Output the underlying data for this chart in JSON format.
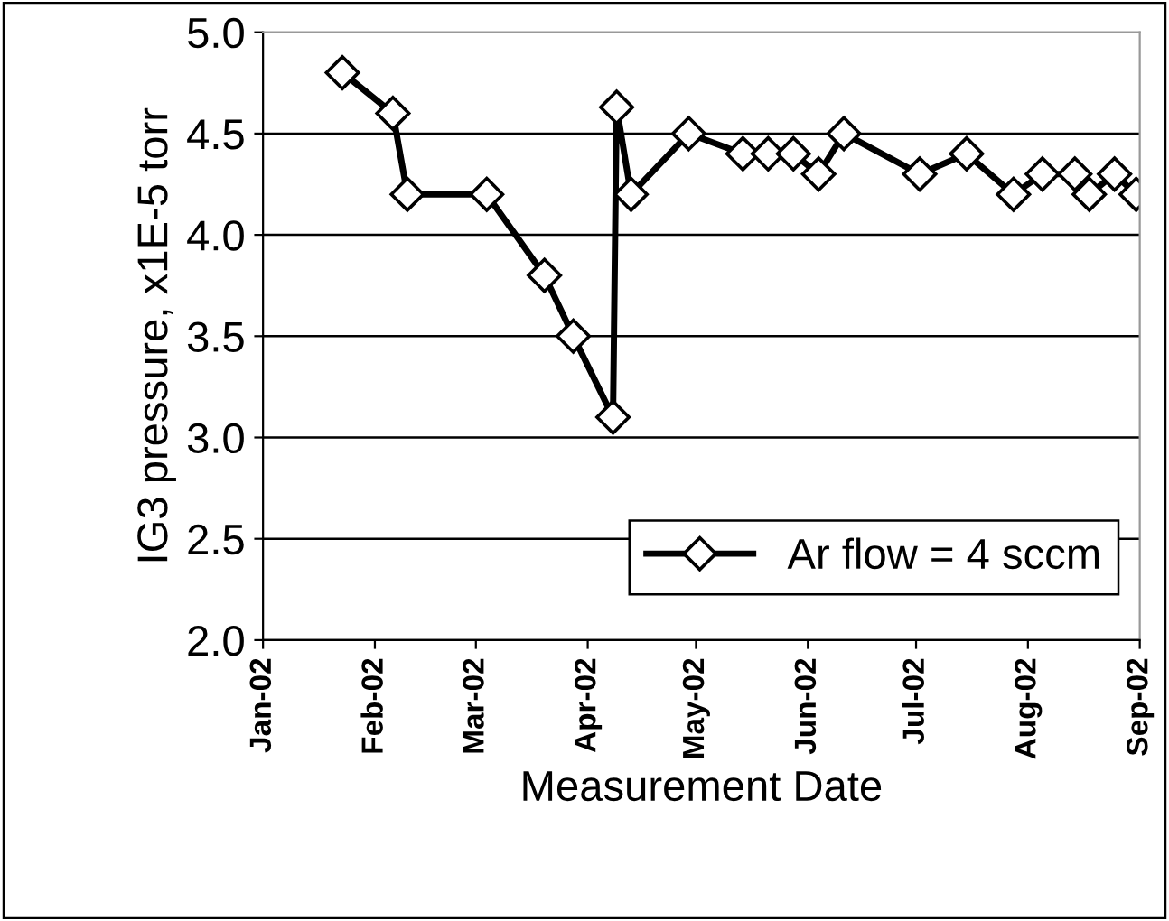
{
  "chart_data": {
    "type": "line",
    "xlabel": "Measurement Date",
    "ylabel": "IG3 pressure, x1E-5 torr",
    "x": [
      "2002-01-23",
      "2002-02-06",
      "2002-02-10",
      "2002-03-04",
      "2002-03-20",
      "2002-03-28",
      "2002-04-08",
      "2002-04-09",
      "2002-04-13",
      "2002-04-29",
      "2002-05-14",
      "2002-05-21",
      "2002-05-28",
      "2002-06-04",
      "2002-06-11",
      "2002-07-02",
      "2002-07-15",
      "2002-07-28",
      "2002-08-05",
      "2002-08-14",
      "2002-08-18",
      "2002-08-25",
      "2002-08-31"
    ],
    "series": [
      {
        "name": "Ar flow = 4 sccm",
        "color": "#000000",
        "values": [
          4.8,
          4.6,
          4.2,
          4.2,
          3.8,
          3.5,
          3.1,
          4.63,
          4.2,
          4.5,
          4.4,
          4.4,
          4.4,
          4.3,
          4.5,
          4.3,
          4.4,
          4.2,
          4.3,
          4.3,
          4.2,
          4.3,
          4.2
        ]
      }
    ],
    "xlim": [
      "2002-01-01",
      "2002-09-01"
    ],
    "xticks": [
      {
        "value": "2002-01-01",
        "label": "Jan-02"
      },
      {
        "value": "2002-02-01",
        "label": "Feb-02"
      },
      {
        "value": "2002-03-01",
        "label": "Mar-02"
      },
      {
        "value": "2002-04-01",
        "label": "Apr-02"
      },
      {
        "value": "2002-05-01",
        "label": "May-02"
      },
      {
        "value": "2002-06-01",
        "label": "Jun-02"
      },
      {
        "value": "2002-07-01",
        "label": "Jul-02"
      },
      {
        "value": "2002-08-01",
        "label": "Aug-02"
      },
      {
        "value": "2002-09-01",
        "label": "Sep-02"
      }
    ],
    "ylim": [
      2.0,
      5.0
    ],
    "yticks": [
      {
        "value": 2.0,
        "label": "2.0"
      },
      {
        "value": 2.5,
        "label": "2.5"
      },
      {
        "value": 3.0,
        "label": "3.0"
      },
      {
        "value": 3.5,
        "label": "3.5"
      },
      {
        "value": 4.0,
        "label": "4.0"
      },
      {
        "value": 4.5,
        "label": "4.5"
      },
      {
        "value": 5.0,
        "label": "5.0"
      }
    ],
    "grid": "y",
    "legend": "bottom right",
    "marker": "diamond",
    "line_style": "solid"
  }
}
